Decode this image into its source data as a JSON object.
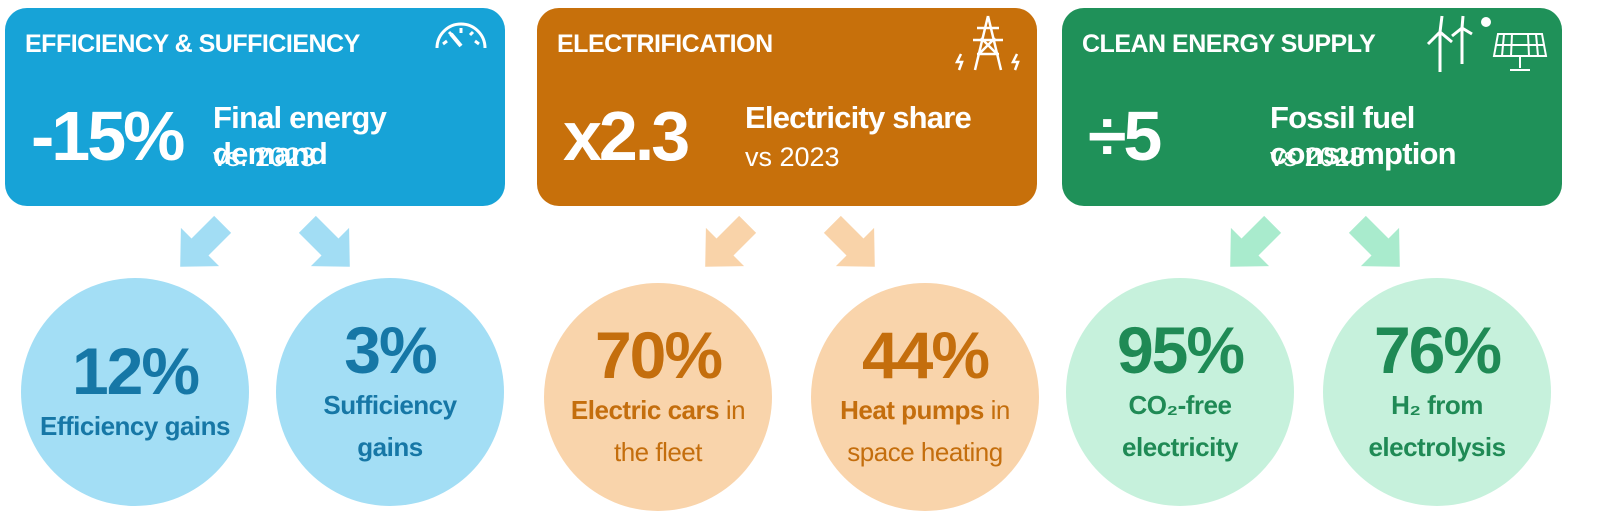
{
  "panels": [
    {
      "title": "EFFICIENCY & SUFFICIENCY",
      "value": "-15%",
      "label": "Final energy demand",
      "sub": "vs. 2023",
      "circles": [
        {
          "value": "12%",
          "bold": "Efficiency gains"
        },
        {
          "value": "3%",
          "bold": "Sufficiency gains"
        }
      ]
    },
    {
      "title": "ELECTRIFICATION",
      "value": "x2.3",
      "label": "Electricity share",
      "sub": "vs 2023",
      "circles": [
        {
          "value": "70%",
          "bold": "Electric cars",
          "plain": "in the fleet"
        },
        {
          "value": "44%",
          "bold": "Heat pumps",
          "plain": "in space heating"
        }
      ]
    },
    {
      "title": "CLEAN ENERGY SUPPLY",
      "value": "÷5",
      "label": "Fossil fuel consumption",
      "sub": "vs 2023",
      "circles": [
        {
          "value": "95%",
          "bold": "CO₂-free electricity"
        },
        {
          "value": "76%",
          "bold": "H₂ from electrolysis"
        }
      ]
    }
  ]
}
